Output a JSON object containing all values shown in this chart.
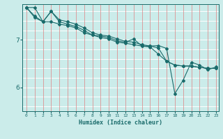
{
  "xlabel": "Humidex (Indice chaleur)",
  "background_color": "#cbecea",
  "line_color": "#1a6b6b",
  "grid_h_color": "#ffffff",
  "grid_v_color": "#e08080",
  "xmin": 0,
  "xmax": 23,
  "ymin": 5.5,
  "ymax": 7.75,
  "yticks": [
    6,
    7
  ],
  "xticks": [
    0,
    1,
    2,
    3,
    4,
    5,
    6,
    7,
    8,
    9,
    10,
    11,
    12,
    13,
    14,
    15,
    16,
    17,
    18,
    19,
    20,
    21,
    22,
    23
  ],
  "line1_x": [
    0,
    1,
    2,
    3,
    4,
    5,
    6,
    7,
    8,
    9,
    10,
    11,
    12,
    13,
    14,
    15,
    16,
    17,
    18,
    19,
    20,
    21,
    22,
    23
  ],
  "line1_y": [
    7.68,
    7.5,
    7.38,
    7.38,
    7.33,
    7.3,
    7.25,
    7.15,
    7.1,
    7.05,
    7.02,
    6.95,
    6.93,
    6.9,
    6.87,
    6.85,
    6.7,
    6.55,
    6.47,
    6.45,
    6.45,
    6.42,
    6.4,
    6.4
  ],
  "line2_x": [
    0,
    1,
    2,
    3,
    4,
    5,
    6,
    7,
    8,
    9,
    10,
    11,
    12,
    13,
    14,
    15,
    16,
    17,
    18,
    19,
    20,
    21,
    22,
    23
  ],
  "line2_y": [
    7.68,
    7.47,
    7.38,
    7.6,
    7.38,
    7.33,
    7.28,
    7.2,
    7.1,
    7.08,
    7.05,
    6.98,
    6.95,
    7.02,
    6.87,
    6.87,
    6.83,
    6.55,
    6.47,
    6.45,
    6.45,
    6.42,
    6.4,
    6.4
  ],
  "line3_x": [
    0,
    1,
    2,
    3,
    4,
    5,
    6,
    7,
    8,
    9,
    10,
    11,
    12,
    13,
    14,
    15,
    16,
    17,
    18,
    19,
    20,
    21,
    22,
    23
  ],
  "line3_y": [
    7.68,
    7.68,
    7.38,
    7.6,
    7.42,
    7.38,
    7.33,
    7.25,
    7.15,
    7.1,
    7.08,
    7.02,
    6.97,
    6.95,
    6.9,
    6.87,
    6.88,
    6.82,
    5.87,
    6.15,
    6.53,
    6.47,
    6.37,
    6.43
  ]
}
